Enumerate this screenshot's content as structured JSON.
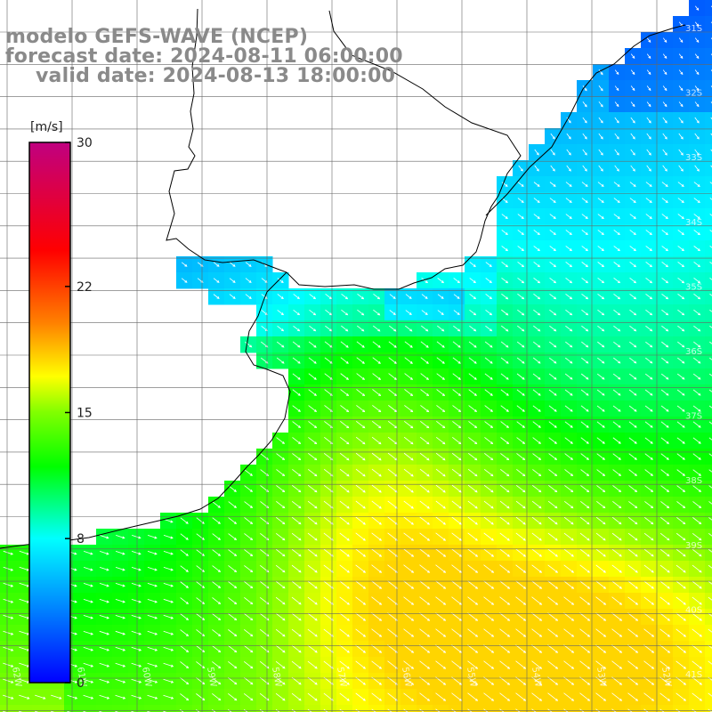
{
  "titles": {
    "model": "modelo GEFS-WAVE (NCEP)",
    "forecast": "forecast date: 2024-08-11 06:00:00",
    "valid": "valid date: 2024-08-13 18:00:00"
  },
  "colorbar": {
    "unit": "[m/s]",
    "ticks": [
      "30",
      "22",
      "15",
      "8",
      "0"
    ],
    "tick_values": [
      30,
      22,
      15,
      8,
      0
    ],
    "min": 0,
    "max": 30,
    "stops": [
      {
        "v": 0,
        "c": "#0000ff"
      },
      {
        "v": 4,
        "c": "#0080ff"
      },
      {
        "v": 8,
        "c": "#00ffff"
      },
      {
        "v": 12,
        "c": "#00ff00"
      },
      {
        "v": 15,
        "c": "#80ff00"
      },
      {
        "v": 17,
        "c": "#ffff00"
      },
      {
        "v": 20,
        "c": "#ff8000"
      },
      {
        "v": 24,
        "c": "#ff0000"
      },
      {
        "v": 30,
        "c": "#c00080"
      }
    ]
  },
  "grid": {
    "lat_labels": [
      "31S",
      "32S",
      "33S",
      "34S",
      "35S",
      "36S",
      "37S",
      "38S",
      "39S",
      "40S",
      "41S"
    ],
    "lon_labels": [
      "62W",
      "61W",
      "60W",
      "59W",
      "58W",
      "57W",
      "56W",
      "55W",
      "54W",
      "53W",
      "52W",
      "51W"
    ]
  },
  "colors": {
    "land": "#ffffff",
    "coast": "#000000",
    "gridline": "#666666",
    "arrow": "#ffffff",
    "title": "#8a8a8a"
  }
}
